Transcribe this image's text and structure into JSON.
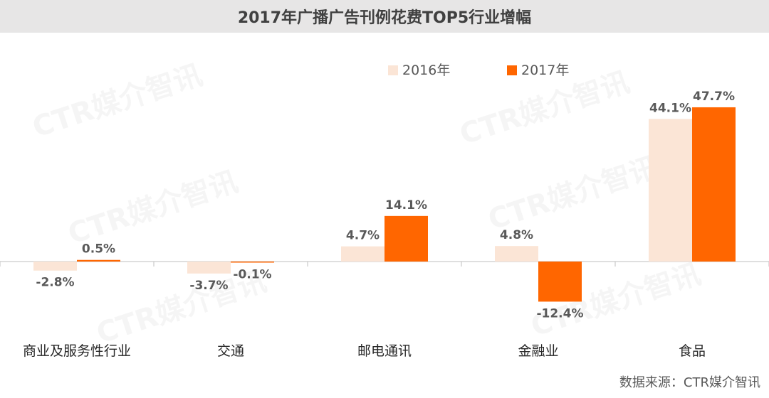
{
  "chart_data": {
    "type": "bar",
    "title": "2017年广播广告刊例花费TOP5行业增幅",
    "categories": [
      "商业及服务性行业",
      "交通",
      "邮电通讯",
      "金融业",
      "食品"
    ],
    "series": [
      {
        "name": "2016年",
        "color": "#fbe5d6",
        "values": [
          -2.8,
          -3.7,
          4.7,
          4.8,
          44.1
        ],
        "labels": [
          "-2.8%",
          "-3.7%",
          "4.7%",
          "4.8%",
          "44.1%"
        ]
      },
      {
        "name": "2017年",
        "color": "#ff6600",
        "values": [
          0.5,
          -0.1,
          14.1,
          -12.4,
          47.7
        ],
        "labels": [
          "0.5%",
          "-0.1%",
          "14.1%",
          "-12.4%",
          "47.7%"
        ]
      }
    ],
    "legend_position": "top-center",
    "grid": false
  },
  "source": "数据来源：CTR媒介智讯",
  "watermark": "CTR媒介智讯"
}
